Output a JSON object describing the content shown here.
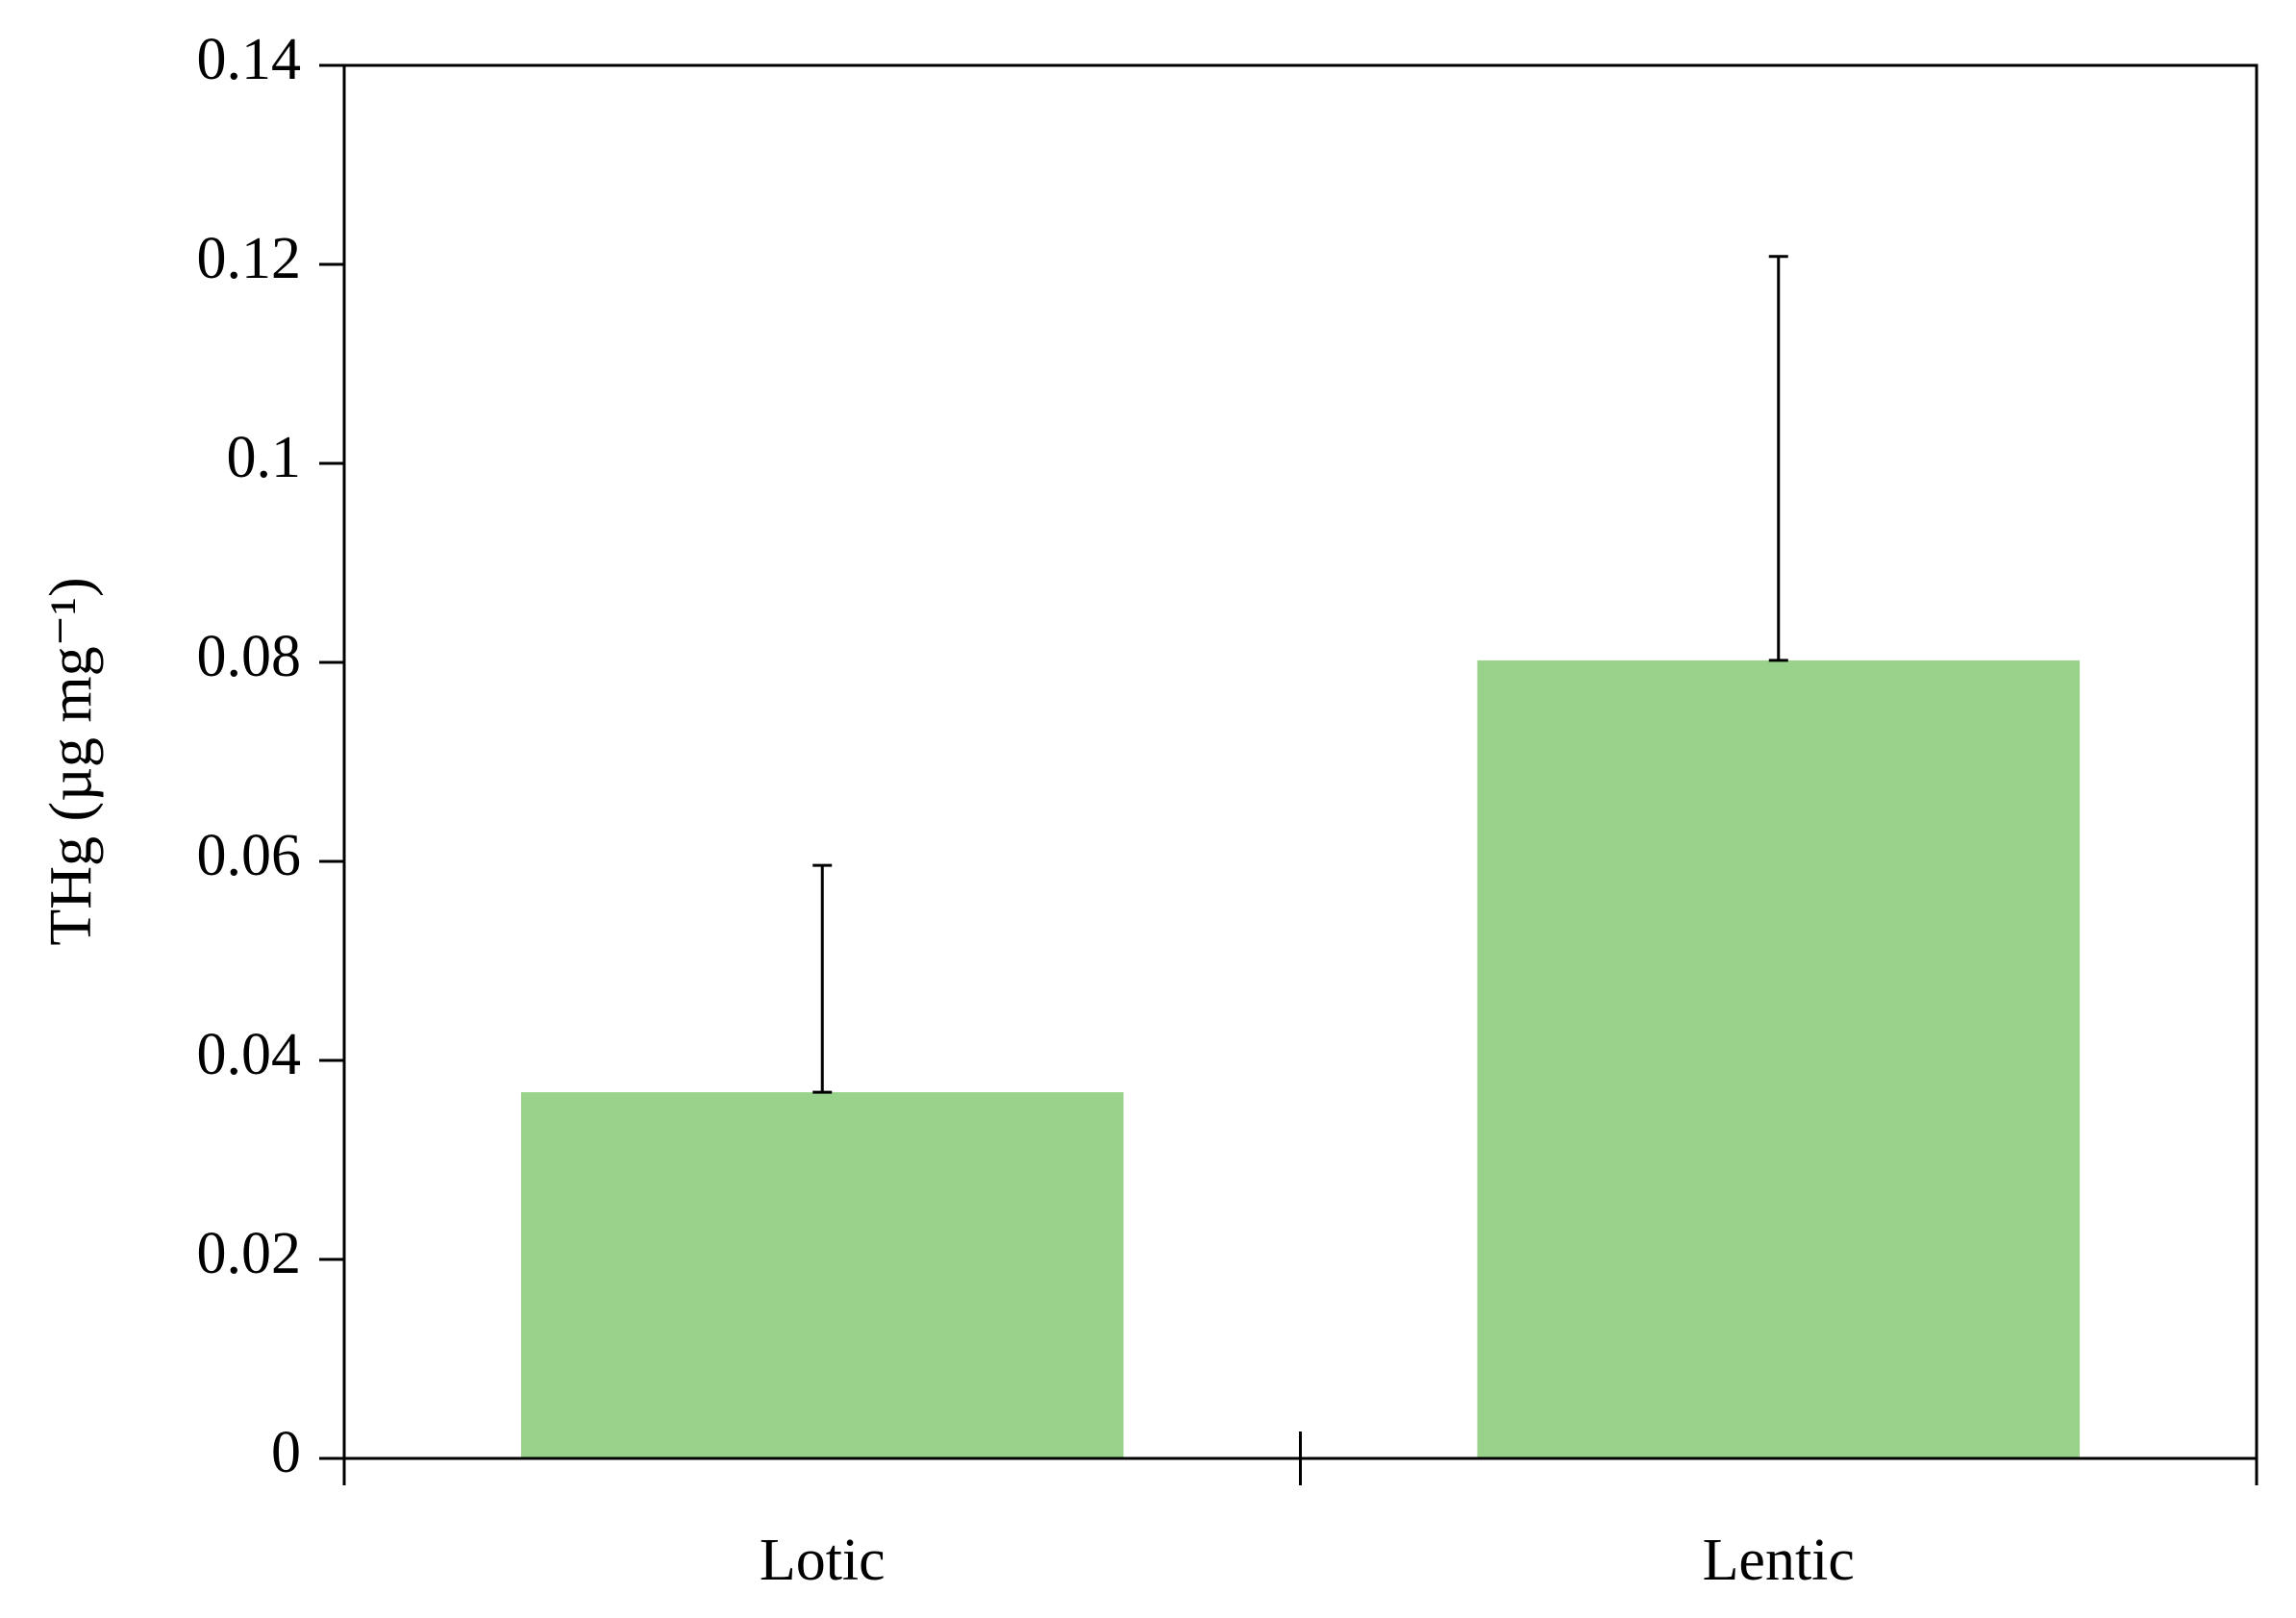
{
  "chart_data": {
    "type": "bar",
    "y_label": "THg (µg mg⁻¹)",
    "categories": [
      "Lotic",
      "Lentic"
    ],
    "values": [
      0.0368,
      0.0802
    ],
    "errors": [
      0.0228,
      0.0406
    ],
    "color": "#98d28b",
    "ylim": [
      0,
      0.14
    ],
    "yticks": [
      0,
      0.02,
      0.04,
      0.06,
      0.08,
      0.1,
      0.12,
      0.14
    ],
    "grid": false
  }
}
